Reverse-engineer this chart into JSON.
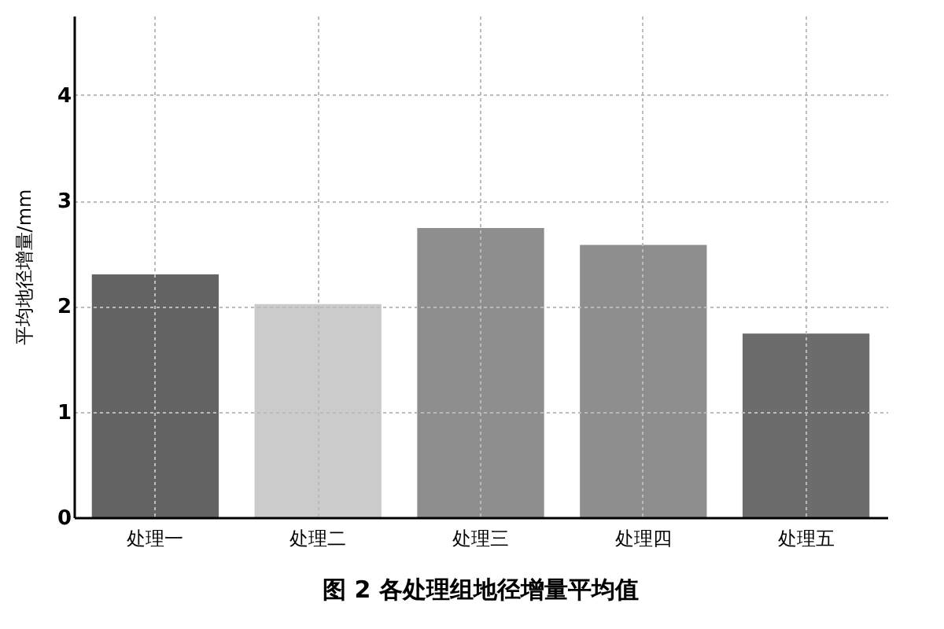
{
  "chart_data": {
    "type": "bar",
    "title": "图 2  各处理组地径增量平均值",
    "ylabel": "平均地径增量/mm",
    "categories": [
      "处理一",
      "处理二",
      "处理三",
      "处理四",
      "处理五"
    ],
    "values": [
      2.3,
      2.02,
      2.74,
      2.58,
      1.74
    ],
    "colors": [
      "#636363",
      "#cbcbcb",
      "#8e8e8e",
      "#8e8e8e",
      "#6c6c6c"
    ],
    "ylim": [
      0,
      4.75
    ],
    "yticks": [
      0,
      1,
      2,
      3,
      4
    ],
    "grid": true
  }
}
